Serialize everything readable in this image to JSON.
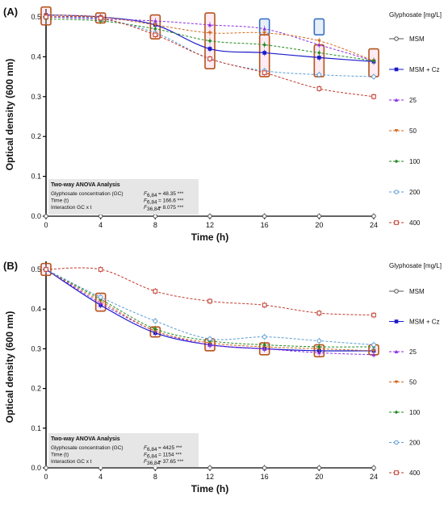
{
  "colors": {
    "MSM": "#555555",
    "MSM + Cz": "#1a1acc",
    "25": "#8a2be2",
    "50": "#d2691e",
    "100": "#228b22",
    "200": "#5b9bd5",
    "400": "#c0392b",
    "box_orange": "#b5531a",
    "box_blue": "#3a6fc4",
    "anova_bg": "#e6e6e6"
  },
  "chart_data": [
    {
      "panel_label": "(A)",
      "type": "line",
      "xlabel": "Time (h)",
      "ylabel": "Optical density (600 nm)",
      "xlim": [
        0,
        24
      ],
      "ylim": [
        0,
        0.5
      ],
      "xticks": [
        0,
        4,
        8,
        12,
        16,
        20,
        24
      ],
      "yticks": [
        0.0,
        0.1,
        0.2,
        0.3,
        0.4,
        0.5
      ],
      "x": [
        0,
        4,
        8,
        12,
        16,
        20,
        24
      ],
      "legend_title": "Glyphosate [mg/L]",
      "series": [
        {
          "name": "MSM",
          "marker": "circle-open",
          "dash": "solid",
          "values": [
            0.0,
            0.0,
            0.0,
            0.0,
            0.0,
            0.0,
            0.0
          ]
        },
        {
          "name": "MSM + Cz",
          "marker": "square",
          "dash": "solid",
          "values": [
            0.505,
            0.5,
            0.48,
            0.42,
            0.41,
            0.398,
            0.388
          ]
        },
        {
          "name": "25",
          "marker": "triangle",
          "dash": "dashed",
          "values": [
            0.5,
            0.495,
            0.49,
            0.48,
            0.47,
            0.43,
            0.39
          ]
        },
        {
          "name": "50",
          "marker": "triangle-down",
          "dash": "dashed",
          "values": [
            0.505,
            0.5,
            0.48,
            0.46,
            0.46,
            0.44,
            0.39
          ]
        },
        {
          "name": "100",
          "marker": "diamond",
          "dash": "dashed",
          "values": [
            0.495,
            0.49,
            0.47,
            0.44,
            0.43,
            0.41,
            0.39
          ]
        },
        {
          "name": "200",
          "marker": "circle-open",
          "dash": "dashed",
          "values": [
            0.5,
            0.495,
            0.46,
            0.395,
            0.365,
            0.355,
            0.35
          ]
        },
        {
          "name": "400",
          "marker": "square-open",
          "dash": "dashed",
          "values": [
            0.5,
            0.497,
            0.455,
            0.395,
            0.36,
            0.32,
            0.3
          ]
        }
      ],
      "boxes": [
        {
          "x": 0,
          "low": 0.48,
          "high": 0.525,
          "color": "orange"
        },
        {
          "x": 4,
          "low": 0.485,
          "high": 0.51,
          "color": "orange"
        },
        {
          "x": 8,
          "low": 0.445,
          "high": 0.505,
          "color": "orange"
        },
        {
          "x": 12,
          "low": 0.37,
          "high": 0.51,
          "color": "orange"
        },
        {
          "x": 16,
          "low": 0.455,
          "high": 0.495,
          "color": "blue"
        },
        {
          "x": 16,
          "low": 0.35,
          "high": 0.455,
          "color": "orange"
        },
        {
          "x": 20,
          "low": 0.455,
          "high": 0.495,
          "color": "blue"
        },
        {
          "x": 20,
          "low": 0.35,
          "high": 0.43,
          "color": "orange"
        },
        {
          "x": 24,
          "low": 0.35,
          "high": 0.42,
          "color": "orange"
        }
      ],
      "anova": {
        "title": "Two-way ANOVA Analysis",
        "rows": [
          {
            "label": "Glyphosate concentration (GC)",
            "stat": "F",
            "sub": "6,84",
            "value": "= 48.35 ***"
          },
          {
            "label": "Time (t)",
            "stat": "F",
            "sub": "6,84",
            "value": "= 166.6 ***"
          },
          {
            "label": "Interaction GC x t",
            "stat": "F",
            "sub": "36,84",
            "value": "= 8.075 ***"
          }
        ]
      }
    },
    {
      "panel_label": "(B)",
      "type": "line",
      "xlabel": "Time (h)",
      "ylabel": "Optical density (600 nm)",
      "xlim": [
        0,
        24
      ],
      "ylim": [
        0,
        0.5
      ],
      "xticks": [
        0,
        4,
        8,
        12,
        16,
        20,
        24
      ],
      "yticks": [
        0.0,
        0.1,
        0.2,
        0.3,
        0.4,
        0.5
      ],
      "x": [
        0,
        4,
        8,
        12,
        16,
        20,
        24
      ],
      "legend_title": "Glyphosate [mg/L]",
      "series": [
        {
          "name": "MSM",
          "marker": "circle-open",
          "dash": "solid",
          "values": [
            0.0,
            0.0,
            0.0,
            0.0,
            0.0,
            0.0,
            0.0
          ]
        },
        {
          "name": "MSM + Cz",
          "marker": "square",
          "dash": "solid",
          "values": [
            0.5,
            0.41,
            0.34,
            0.31,
            0.3,
            0.295,
            0.295
          ]
        },
        {
          "name": "25",
          "marker": "triangle",
          "dash": "dashed",
          "values": [
            0.5,
            0.415,
            0.345,
            0.31,
            0.3,
            0.29,
            0.285
          ]
        },
        {
          "name": "50",
          "marker": "triangle-down",
          "dash": "dashed",
          "values": [
            0.5,
            0.42,
            0.345,
            0.315,
            0.305,
            0.3,
            0.295
          ]
        },
        {
          "name": "100",
          "marker": "diamond",
          "dash": "dashed",
          "values": [
            0.5,
            0.425,
            0.35,
            0.32,
            0.31,
            0.305,
            0.305
          ]
        },
        {
          "name": "200",
          "marker": "circle-open",
          "dash": "dashed",
          "values": [
            0.5,
            0.43,
            0.37,
            0.325,
            0.33,
            0.32,
            0.31
          ]
        },
        {
          "name": "400",
          "marker": "square-open",
          "dash": "dashed",
          "values": [
            0.5,
            0.5,
            0.445,
            0.42,
            0.41,
            0.39,
            0.385
          ]
        }
      ],
      "boxes": [
        {
          "x": 0,
          "low": 0.485,
          "high": 0.515,
          "color": "orange"
        },
        {
          "x": 4,
          "low": 0.395,
          "high": 0.44,
          "color": "orange"
        },
        {
          "x": 8,
          "low": 0.33,
          "high": 0.355,
          "color": "orange"
        },
        {
          "x": 12,
          "low": 0.295,
          "high": 0.325,
          "color": "orange"
        },
        {
          "x": 16,
          "low": 0.285,
          "high": 0.315,
          "color": "orange"
        },
        {
          "x": 20,
          "low": 0.28,
          "high": 0.31,
          "color": "orange"
        },
        {
          "x": 24,
          "low": 0.285,
          "high": 0.31,
          "color": "orange"
        }
      ],
      "anova": {
        "title": "Two-way ANOVA Analysis",
        "rows": [
          {
            "label": "Glyphosate concentration (GC)",
            "stat": "F",
            "sub": "6,84",
            "value": "= 4425 ***"
          },
          {
            "label": "Time (t)",
            "stat": "F",
            "sub": "6,84",
            "value": "= 1154 ***"
          },
          {
            "label": "Interaction GC x t",
            "stat": "F",
            "sub": "36,84",
            "value": "= 37.65 ***"
          }
        ]
      }
    }
  ]
}
